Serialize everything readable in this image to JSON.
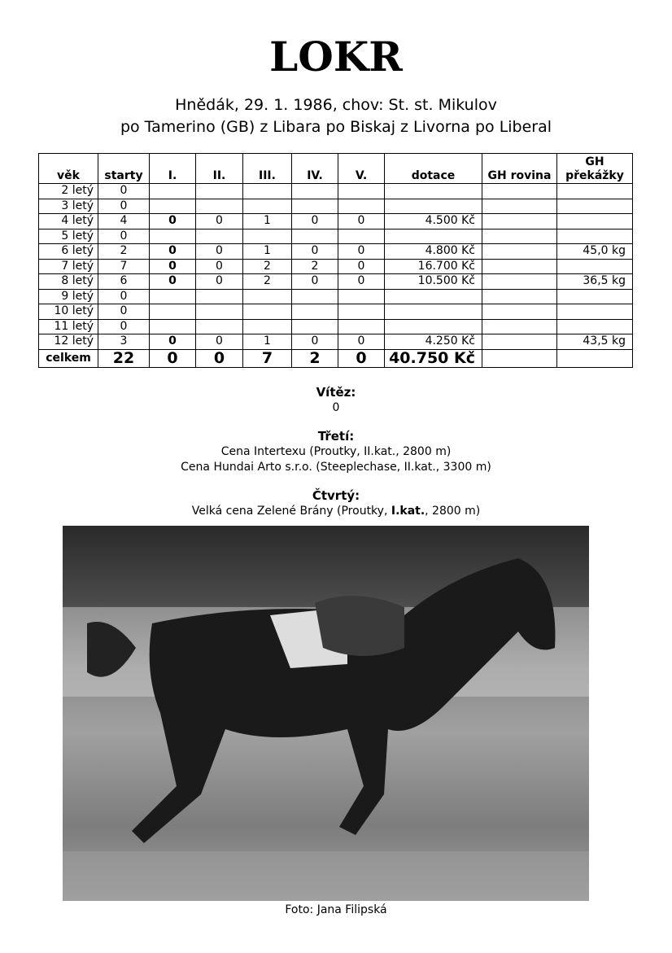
{
  "title": "LOKR",
  "subtitle_line1": "Hnědák,   29. 1. 1986,  chov:  St. st. Mikulov",
  "subtitle_line2": "po Tamerino (GB) z Libara po Biskaj z Livorna po Liberal",
  "table": {
    "headers": [
      "věk",
      "starty",
      "I.",
      "II.",
      "III.",
      "IV.",
      "V.",
      "dotace",
      "GH rovina",
      "GH překážky"
    ],
    "rows": [
      [
        "2 letý",
        "0",
        "",
        "",
        "",
        "",
        "",
        "",
        "",
        ""
      ],
      [
        "3 letý",
        "0",
        "",
        "",
        "",
        "",
        "",
        "",
        "",
        ""
      ],
      [
        "4 letý",
        "4",
        "0",
        "0",
        "1",
        "0",
        "0",
        "4.500 Kč",
        "",
        ""
      ],
      [
        "5 letý",
        "0",
        "",
        "",
        "",
        "",
        "",
        "",
        "",
        ""
      ],
      [
        "6 letý",
        "2",
        "0",
        "0",
        "1",
        "0",
        "0",
        "4.800 Kč",
        "",
        "45,0 kg"
      ],
      [
        "7 letý",
        "7",
        "0",
        "0",
        "2",
        "2",
        "0",
        "16.700 Kč",
        "",
        ""
      ],
      [
        "8 letý",
        "6",
        "0",
        "0",
        "2",
        "0",
        "0",
        "10.500 Kč",
        "",
        "36,5 kg"
      ],
      [
        "9 letý",
        "0",
        "",
        "",
        "",
        "",
        "",
        "",
        "",
        ""
      ],
      [
        "10 letý",
        "0",
        "",
        "",
        "",
        "",
        "",
        "",
        "",
        ""
      ],
      [
        "11 letý",
        "0",
        "",
        "",
        "",
        "",
        "",
        "",
        "",
        ""
      ],
      [
        "12 letý",
        "3",
        "0",
        "0",
        "1",
        "0",
        "0",
        "4.250 Kč",
        "",
        "43,5 kg"
      ]
    ],
    "total": [
      "celkem",
      "22",
      "0",
      "0",
      "7",
      "2",
      "0",
      "40.750 Kč",
      "",
      ""
    ]
  },
  "winner": {
    "heading": "Vítěz:",
    "lines": [
      "0"
    ]
  },
  "third": {
    "heading": "Třetí:",
    "lines": [
      "Cena Intertexu (Proutky, II.kat., 2800 m)",
      "Cena Hundai Arto s.r.o. (Steeplechase, II.kat., 3300 m)"
    ]
  },
  "fourth": {
    "heading": "Čtvrtý:",
    "line_pre": "Velká cena Zelené Brány (Proutky, ",
    "line_bold": "I.kat.",
    "line_post": ", 2800 m)"
  },
  "photo_caption": "Foto: Jana Filipská"
}
